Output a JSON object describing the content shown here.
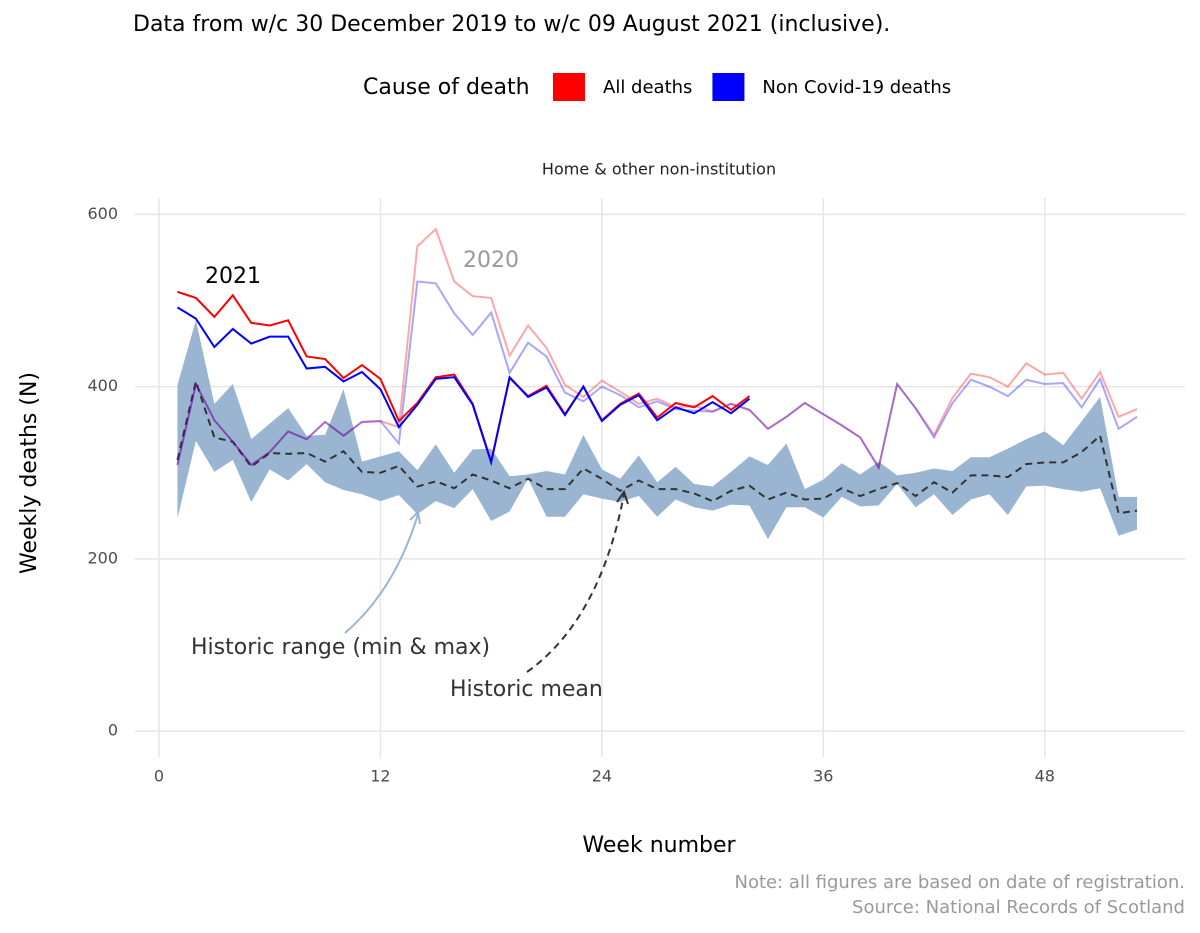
{
  "chart_data": {
    "type": "line",
    "title": "Data from w/c 30 December 2019 to w/c 09 August 2021 (inclusive).",
    "facet": "Home & other non-institution",
    "xlabel": "Week number",
    "ylabel": "Weekly deaths (N)",
    "notes": [
      "Note: all figures are based on date of registration.",
      "Source: National Records of Scotland"
    ],
    "legend": {
      "title": "Cause of death",
      "items": [
        {
          "name": "All deaths",
          "color": "#ff0000"
        },
        {
          "name": "Non Covid-19 deaths",
          "color": "#0000ff"
        }
      ]
    },
    "xlim": [
      -1.3,
      55.6
    ],
    "ylim": [
      -30,
      619
    ],
    "xticks": [
      0,
      12,
      24,
      36,
      48
    ],
    "yticks": [
      0,
      200,
      400,
      600
    ],
    "grid": true,
    "x": [
      1,
      2,
      3,
      4,
      5,
      6,
      7,
      8,
      9,
      10,
      11,
      12,
      13,
      14,
      15,
      16,
      17,
      18,
      19,
      20,
      21,
      22,
      23,
      24,
      25,
      26,
      27,
      28,
      29,
      30,
      31,
      32,
      33,
      34,
      35,
      36,
      37,
      38,
      39,
      40,
      41,
      42,
      43,
      44,
      45,
      46,
      47,
      48,
      49,
      50,
      51,
      52,
      53
    ],
    "band": {
      "name": "Historic range (min & max)",
      "color": "#9ab5d1",
      "min": [
        247,
        337,
        301,
        315,
        266,
        304,
        291,
        310,
        289,
        280,
        275,
        267,
        274,
        252,
        267,
        259,
        281,
        244,
        255,
        293,
        249,
        249,
        275,
        270,
        266,
        273,
        249,
        269,
        260,
        256,
        263,
        262,
        223,
        260,
        260,
        248,
        272,
        261,
        262,
        287,
        260,
        275,
        251,
        269,
        275,
        251,
        284,
        285,
        281,
        278,
        282,
        227,
        234
      ],
      "max": [
        402,
        477,
        380,
        403,
        339,
        357,
        375,
        343,
        344,
        397,
        313,
        319,
        325,
        303,
        333,
        300,
        327,
        328,
        296,
        298,
        302,
        298,
        344,
        304,
        293,
        320,
        289,
        307,
        287,
        284,
        301,
        319,
        309,
        334,
        281,
        292,
        311,
        298,
        313,
        297,
        300,
        305,
        302,
        318,
        318,
        328,
        339,
        348,
        332,
        360,
        388,
        272,
        272
      ]
    },
    "mean": {
      "name": "Historic mean",
      "color": "#333333",
      "values": [
        315,
        406,
        341,
        336,
        307,
        323,
        322,
        323,
        313,
        325,
        301,
        300,
        308,
        284,
        290,
        282,
        298,
        291,
        282,
        293,
        281,
        281,
        305,
        293,
        279,
        291,
        281,
        281,
        276,
        267,
        279,
        285,
        269,
        277,
        269,
        270,
        282,
        273,
        281,
        288,
        273,
        289,
        277,
        297,
        297,
        295,
        310,
        312,
        312,
        324,
        343,
        253,
        256
      ]
    },
    "annotations": [
      "2021",
      "2020"
    ],
    "series": [
      {
        "color": "#ff0000",
        "opacity": 0.35,
        "values": [
          309,
          403,
          361,
          336,
          309,
          324,
          348,
          339,
          359,
          343,
          359,
          360,
          353,
          563,
          583,
          522,
          505,
          503,
          436,
          471,
          445,
          402,
          388,
          407,
          394,
          380,
          386,
          376,
          378,
          371,
          380,
          373,
          351,
          365,
          381,
          368,
          355,
          341,
          306,
          403,
          375,
          344,
          387,
          415,
          411,
          400,
          427,
          414,
          416,
          386,
          417,
          365,
          374
        ]
      },
      {
        "color": "#0000ff",
        "opacity": 0.35,
        "values": [
          309,
          403,
          361,
          336,
          309,
          324,
          348,
          339,
          359,
          343,
          359,
          360,
          334,
          522,
          520,
          485,
          460,
          486,
          416,
          451,
          435,
          393,
          383,
          400,
          390,
          376,
          383,
          374,
          372,
          371,
          380,
          373,
          351,
          365,
          381,
          368,
          355,
          341,
          306,
          403,
          375,
          341,
          381,
          408,
          400,
          389,
          408,
          403,
          404,
          376,
          409,
          351,
          365
        ]
      },
      {
        "color": "#ff0000",
        "opacity": 1,
        "values": [
          510,
          503,
          481,
          506,
          474,
          471,
          477,
          435,
          432,
          410,
          425,
          409,
          360,
          381,
          411,
          414,
          380,
          313,
          410,
          389,
          401,
          368,
          400,
          361,
          380,
          392,
          364,
          381,
          376,
          389,
          373,
          389,
          null,
          null,
          null,
          null,
          null,
          null,
          null,
          null,
          null,
          null,
          null,
          null,
          null,
          null,
          null,
          null,
          null,
          null,
          null,
          null,
          null
        ]
      },
      {
        "color": "#0000ff",
        "opacity": 1,
        "values": [
          492,
          479,
          446,
          467,
          450,
          458,
          458,
          421,
          423,
          406,
          417,
          397,
          353,
          379,
          409,
          411,
          379,
          312,
          411,
          388,
          399,
          367,
          400,
          360,
          379,
          390,
          361,
          376,
          369,
          382,
          369,
          386,
          null,
          null,
          null,
          null,
          null,
          null,
          null,
          null,
          null,
          null,
          null,
          null,
          null,
          null,
          null,
          null,
          null,
          null,
          null,
          null,
          null
        ]
      }
    ]
  }
}
